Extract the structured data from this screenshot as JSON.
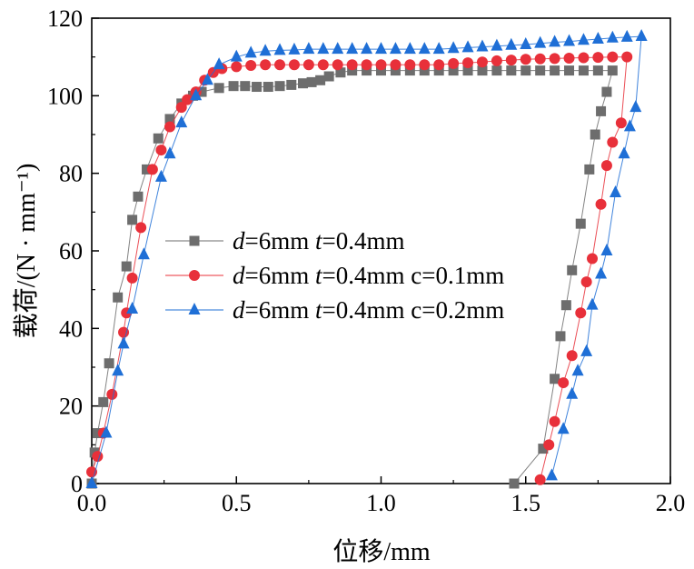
{
  "chart_data": {
    "type": "scatter",
    "xlabel": "位移/mm",
    "ylabel": "载荷/(N · mm⁻¹)",
    "xlim": [
      0,
      2.0
    ],
    "ylim": [
      0,
      120
    ],
    "xticks": [
      "0.0",
      "0.5",
      "1.0",
      "1.5",
      "2.0"
    ],
    "yticks": [
      "0",
      "20",
      "40",
      "60",
      "80",
      "100",
      "120"
    ],
    "grid": false,
    "legend_position": "center-left",
    "series": [
      {
        "name": "d=6mm  t=0.4mm",
        "label_parts": [
          "d",
          "=6mm  ",
          "t",
          "=0.4mm"
        ],
        "color": "#6d6d6d",
        "marker": "square",
        "points": [
          [
            0.0,
            0
          ],
          [
            0.01,
            8
          ],
          [
            0.02,
            13
          ],
          [
            0.04,
            21
          ],
          [
            0.06,
            31
          ],
          [
            0.09,
            48
          ],
          [
            0.12,
            56
          ],
          [
            0.14,
            68
          ],
          [
            0.16,
            74
          ],
          [
            0.19,
            81
          ],
          [
            0.23,
            89
          ],
          [
            0.27,
            94
          ],
          [
            0.31,
            98
          ],
          [
            0.35,
            100
          ],
          [
            0.38,
            101
          ],
          [
            0.44,
            102
          ],
          [
            0.49,
            102.5
          ],
          [
            0.53,
            102.5
          ],
          [
            0.57,
            102.3
          ],
          [
            0.61,
            102.3
          ],
          [
            0.65,
            102.5
          ],
          [
            0.69,
            102.8
          ],
          [
            0.73,
            103.2
          ],
          [
            0.76,
            103.5
          ],
          [
            0.79,
            104
          ],
          [
            0.82,
            105
          ],
          [
            0.86,
            106
          ],
          [
            0.9,
            106.5
          ],
          [
            0.95,
            106.5
          ],
          [
            1.0,
            106.5
          ],
          [
            1.05,
            106.5
          ],
          [
            1.1,
            106.5
          ],
          [
            1.15,
            106.5
          ],
          [
            1.2,
            106.5
          ],
          [
            1.25,
            106.5
          ],
          [
            1.3,
            106.5
          ],
          [
            1.35,
            106.5
          ],
          [
            1.4,
            106.5
          ],
          [
            1.45,
            106.5
          ],
          [
            1.5,
            106.5
          ],
          [
            1.55,
            106.5
          ],
          [
            1.6,
            106.5
          ],
          [
            1.65,
            106.5
          ],
          [
            1.7,
            106.5
          ],
          [
            1.75,
            106.5
          ],
          [
            1.8,
            106.5
          ],
          [
            1.78,
            101
          ],
          [
            1.76,
            96
          ],
          [
            1.74,
            90
          ],
          [
            1.72,
            81
          ],
          [
            1.69,
            67
          ],
          [
            1.66,
            55
          ],
          [
            1.64,
            46
          ],
          [
            1.62,
            38
          ],
          [
            1.6,
            27
          ],
          [
            1.56,
            9
          ],
          [
            1.46,
            0
          ]
        ]
      },
      {
        "name": "d=6mm  t=0.4mm  c=0.1mm",
        "label_parts": [
          "d",
          "=6mm  ",
          "t",
          "=0.4mm  c=0.1mm"
        ],
        "color": "#e8303a",
        "marker": "circle",
        "points": [
          [
            0.0,
            3
          ],
          [
            0.02,
            7
          ],
          [
            0.04,
            13
          ],
          [
            0.07,
            23
          ],
          [
            0.11,
            39
          ],
          [
            0.12,
            44
          ],
          [
            0.14,
            53
          ],
          [
            0.17,
            66
          ],
          [
            0.21,
            81
          ],
          [
            0.24,
            86
          ],
          [
            0.27,
            92
          ],
          [
            0.31,
            97
          ],
          [
            0.33,
            99
          ],
          [
            0.36,
            101
          ],
          [
            0.39,
            104
          ],
          [
            0.42,
            106
          ],
          [
            0.45,
            107
          ],
          [
            0.5,
            107.5
          ],
          [
            0.55,
            107.8
          ],
          [
            0.6,
            108
          ],
          [
            0.65,
            108
          ],
          [
            0.7,
            108
          ],
          [
            0.75,
            108
          ],
          [
            0.8,
            108
          ],
          [
            0.85,
            108
          ],
          [
            0.9,
            108
          ],
          [
            0.95,
            108
          ],
          [
            1.0,
            108
          ],
          [
            1.05,
            108
          ],
          [
            1.1,
            108
          ],
          [
            1.15,
            108
          ],
          [
            1.2,
            108
          ],
          [
            1.25,
            108.3
          ],
          [
            1.3,
            108.5
          ],
          [
            1.35,
            108.7
          ],
          [
            1.4,
            109
          ],
          [
            1.45,
            109.2
          ],
          [
            1.5,
            109.4
          ],
          [
            1.55,
            109.5
          ],
          [
            1.6,
            109.6
          ],
          [
            1.65,
            109.7
          ],
          [
            1.7,
            109.8
          ],
          [
            1.75,
            109.9
          ],
          [
            1.8,
            110
          ],
          [
            1.85,
            110
          ],
          [
            1.83,
            93
          ],
          [
            1.8,
            88
          ],
          [
            1.78,
            82
          ],
          [
            1.76,
            72
          ],
          [
            1.73,
            58
          ],
          [
            1.71,
            52
          ],
          [
            1.69,
            44
          ],
          [
            1.66,
            33
          ],
          [
            1.63,
            26
          ],
          [
            1.6,
            16
          ],
          [
            1.58,
            10
          ],
          [
            1.55,
            1
          ]
        ]
      },
      {
        "name": "d=6mm  t=0.4mm  c=0.2mm",
        "label_parts": [
          "d",
          "=6mm  ",
          "t",
          "=0.4mm  c=0.2mm"
        ],
        "color": "#1f6fd6",
        "marker": "triangle",
        "points": [
          [
            0.0,
            0
          ],
          [
            0.05,
            13
          ],
          [
            0.09,
            29
          ],
          [
            0.11,
            36
          ],
          [
            0.14,
            45
          ],
          [
            0.18,
            59
          ],
          [
            0.24,
            79
          ],
          [
            0.27,
            85
          ],
          [
            0.31,
            93
          ],
          [
            0.36,
            100
          ],
          [
            0.4,
            104
          ],
          [
            0.44,
            108
          ],
          [
            0.5,
            110
          ],
          [
            0.55,
            111
          ],
          [
            0.6,
            111.5
          ],
          [
            0.65,
            111.7
          ],
          [
            0.7,
            111.8
          ],
          [
            0.75,
            112
          ],
          [
            0.8,
            112
          ],
          [
            0.85,
            112
          ],
          [
            0.9,
            112
          ],
          [
            0.95,
            112
          ],
          [
            1.0,
            112
          ],
          [
            1.05,
            112
          ],
          [
            1.1,
            112
          ],
          [
            1.15,
            112
          ],
          [
            1.2,
            112
          ],
          [
            1.25,
            112.2
          ],
          [
            1.3,
            112.4
          ],
          [
            1.35,
            112.6
          ],
          [
            1.4,
            112.8
          ],
          [
            1.45,
            113
          ],
          [
            1.5,
            113.2
          ],
          [
            1.55,
            113.5
          ],
          [
            1.6,
            113.8
          ],
          [
            1.65,
            114
          ],
          [
            1.7,
            114.3
          ],
          [
            1.75,
            114.6
          ],
          [
            1.8,
            114.9
          ],
          [
            1.85,
            115.1
          ],
          [
            1.9,
            115.3
          ],
          [
            1.88,
            97
          ],
          [
            1.86,
            92
          ],
          [
            1.84,
            85
          ],
          [
            1.81,
            75
          ],
          [
            1.78,
            60
          ],
          [
            1.76,
            54
          ],
          [
            1.73,
            46
          ],
          [
            1.71,
            34
          ],
          [
            1.68,
            29
          ],
          [
            1.66,
            23
          ],
          [
            1.63,
            14
          ],
          [
            1.59,
            2
          ]
        ]
      }
    ]
  }
}
